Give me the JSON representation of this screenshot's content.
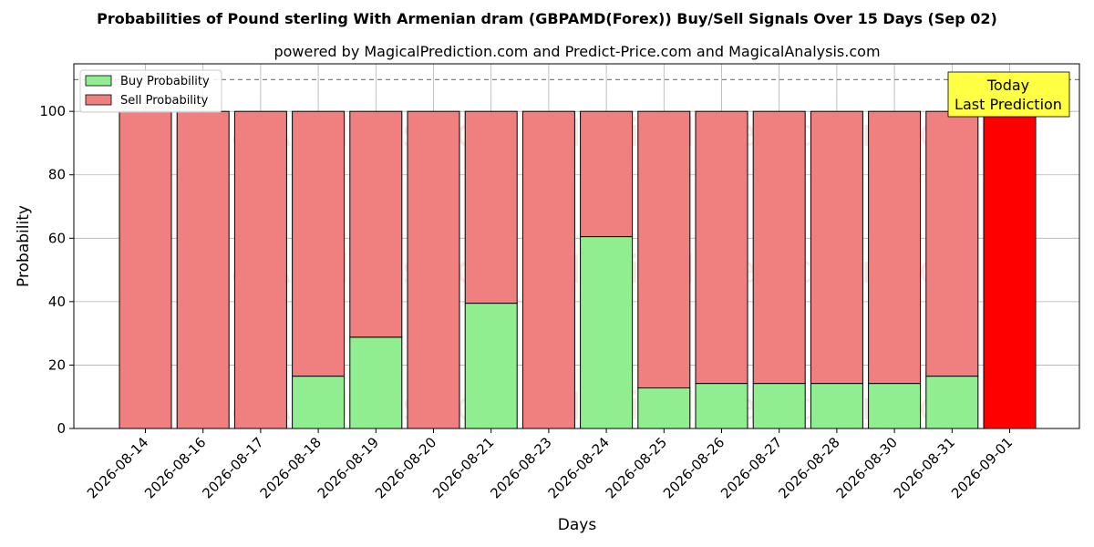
{
  "chart_data": {
    "type": "bar",
    "stacked": true,
    "title": "Probabilities of Pound sterling With Armenian dram (GBPAMD(Forex)) Buy/Sell Signals Over 15 Days (Sep 02)",
    "subtitle": "powered by MagicalPrediction.com and Predict-Price.com and MagicalAnalysis.com",
    "xlabel": "Days",
    "ylabel": "Probability",
    "ylim": [
      0,
      115
    ],
    "yticks": [
      0,
      20,
      40,
      60,
      80,
      100
    ],
    "grid": true,
    "reference_line": 110,
    "legend_position": "top-left",
    "categories": [
      "2026-08-14",
      "2026-08-16",
      "2026-08-17",
      "2026-08-18",
      "2026-08-19",
      "2026-08-20",
      "2026-08-21",
      "2026-08-23",
      "2026-08-24",
      "2026-08-25",
      "2026-08-26",
      "2026-08-27",
      "2026-08-28",
      "2026-08-30",
      "2026-08-31",
      "2026-09-01"
    ],
    "series": [
      {
        "name": "Buy Probability",
        "color": "#90ee90",
        "values": [
          0,
          0,
          0,
          16.5,
          28.8,
          0,
          39.5,
          0,
          60.5,
          12.8,
          14.2,
          14.2,
          14.2,
          14.2,
          16.5,
          0
        ]
      },
      {
        "name": "Sell Probability",
        "color": "#f08080",
        "values": [
          100,
          100,
          100,
          83.5,
          71.2,
          100,
          60.5,
          100,
          39.5,
          87.2,
          85.8,
          85.8,
          85.8,
          85.8,
          83.5,
          100
        ]
      }
    ],
    "highlight": {
      "category": "2026-09-01",
      "color": "#ff0000",
      "label_lines": [
        "Today",
        "Last Prediction"
      ],
      "label_bg": "#ffff44"
    },
    "watermarks": [
      "MagicalAnalysis.com",
      "MagicalPrediction.com"
    ]
  }
}
